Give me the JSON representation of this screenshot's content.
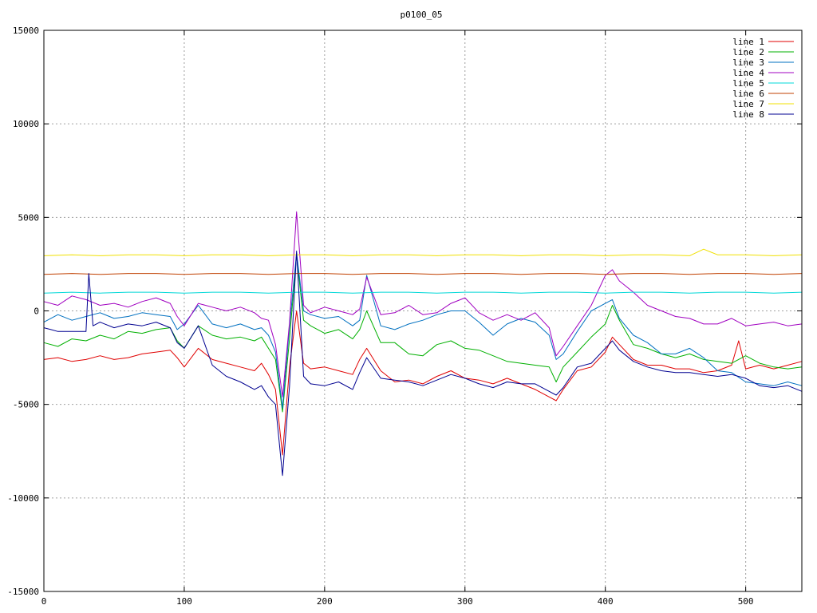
{
  "chart_data": {
    "type": "line",
    "title": "p0100_05",
    "xlabel": "",
    "ylabel": "",
    "xlim": [
      0,
      540
    ],
    "ylim": [
      -15000,
      15000
    ],
    "xticks": [
      0,
      100,
      200,
      300,
      400,
      500
    ],
    "yticks": [
      -15000,
      -10000,
      -5000,
      0,
      5000,
      10000,
      15000
    ],
    "grid": true,
    "legend_position": "top-right",
    "series": [
      {
        "name": "line 1",
        "color": "#e00000",
        "x": [
          0,
          10,
          20,
          30,
          40,
          50,
          60,
          70,
          80,
          90,
          95,
          100,
          110,
          120,
          130,
          140,
          150,
          155,
          160,
          165,
          170,
          175,
          180,
          185,
          190,
          200,
          210,
          220,
          225,
          230,
          240,
          250,
          260,
          270,
          280,
          290,
          300,
          310,
          320,
          330,
          340,
          350,
          360,
          365,
          370,
          380,
          390,
          400,
          405,
          410,
          420,
          430,
          440,
          450,
          460,
          470,
          480,
          490,
          495,
          500,
          510,
          520,
          530,
          540
        ],
        "values": [
          -2600,
          -2500,
          -2700,
          -2600,
          -2400,
          -2600,
          -2500,
          -2300,
          -2200,
          -2100,
          -2500,
          -3000,
          -2000,
          -2600,
          -2800,
          -3000,
          -3200,
          -2800,
          -3400,
          -4200,
          -7700,
          -3000,
          0,
          -2800,
          -3100,
          -3000,
          -3200,
          -3400,
          -2600,
          -2000,
          -3200,
          -3800,
          -3700,
          -3900,
          -3500,
          -3200,
          -3600,
          -3700,
          -3900,
          -3600,
          -3900,
          -4200,
          -4600,
          -4800,
          -4200,
          -3200,
          -3000,
          -2200,
          -1400,
          -1800,
          -2600,
          -2900,
          -2900,
          -3100,
          -3100,
          -3300,
          -3200,
          -2900,
          -1600,
          -3100,
          -2900,
          -3100,
          -2900,
          -2700
        ]
      },
      {
        "name": "line 2",
        "color": "#00b000",
        "x": [
          0,
          10,
          20,
          30,
          40,
          50,
          60,
          70,
          80,
          90,
          95,
          100,
          110,
          120,
          130,
          140,
          150,
          155,
          160,
          165,
          170,
          175,
          180,
          185,
          190,
          200,
          210,
          220,
          225,
          230,
          240,
          250,
          260,
          270,
          280,
          290,
          300,
          310,
          320,
          330,
          340,
          350,
          360,
          365,
          370,
          380,
          390,
          400,
          405,
          410,
          420,
          430,
          440,
          450,
          460,
          470,
          480,
          490,
          500,
          510,
          520,
          530,
          540
        ],
        "values": [
          -1700,
          -1900,
          -1500,
          -1600,
          -1300,
          -1500,
          -1100,
          -1200,
          -1000,
          -900,
          -1600,
          -2000,
          -800,
          -1300,
          -1500,
          -1400,
          -1600,
          -1400,
          -2000,
          -2600,
          -5400,
          -1500,
          3000,
          -500,
          -800,
          -1200,
          -1000,
          -1500,
          -1000,
          0,
          -1700,
          -1700,
          -2300,
          -2400,
          -1800,
          -1600,
          -2000,
          -2100,
          -2400,
          -2700,
          -2800,
          -2900,
          -3000,
          -3800,
          -3000,
          -2200,
          -1400,
          -700,
          300,
          -500,
          -1800,
          -2000,
          -2300,
          -2500,
          -2300,
          -2600,
          -2700,
          -2800,
          -2400,
          -2800,
          -3000,
          -3100,
          -3000
        ]
      },
      {
        "name": "line 3",
        "color": "#0070c0",
        "x": [
          0,
          10,
          20,
          30,
          40,
          50,
          60,
          70,
          80,
          90,
          95,
          100,
          110,
          120,
          130,
          140,
          150,
          155,
          160,
          165,
          170,
          175,
          180,
          185,
          190,
          200,
          210,
          220,
          225,
          230,
          240,
          250,
          260,
          270,
          280,
          290,
          300,
          310,
          320,
          330,
          340,
          350,
          360,
          365,
          370,
          380,
          390,
          400,
          405,
          410,
          420,
          430,
          440,
          450,
          460,
          470,
          480,
          490,
          500,
          510,
          520,
          530,
          540
        ],
        "values": [
          -600,
          -200,
          -500,
          -300,
          -100,
          -400,
          -300,
          -100,
          -200,
          -300,
          -1000,
          -700,
          300,
          -700,
          -900,
          -700,
          -1000,
          -900,
          -1300,
          -2200,
          -5200,
          -800,
          3100,
          0,
          -200,
          -400,
          -300,
          -800,
          -500,
          1900,
          -800,
          -1000,
          -700,
          -500,
          -200,
          0,
          0,
          -600,
          -1300,
          -700,
          -400,
          -600,
          -1300,
          -2600,
          -2300,
          -1100,
          0,
          400,
          600,
          -400,
          -1300,
          -1700,
          -2300,
          -2300,
          -2000,
          -2500,
          -3200,
          -3300,
          -3800,
          -3900,
          -4000,
          -3800,
          -4000
        ]
      },
      {
        "name": "line 4",
        "color": "#a000c0",
        "x": [
          0,
          10,
          20,
          30,
          40,
          50,
          60,
          70,
          80,
          90,
          95,
          100,
          110,
          120,
          130,
          140,
          150,
          155,
          160,
          165,
          170,
          175,
          180,
          185,
          190,
          200,
          210,
          220,
          225,
          230,
          240,
          250,
          260,
          270,
          280,
          290,
          300,
          310,
          320,
          330,
          340,
          350,
          360,
          365,
          370,
          380,
          390,
          400,
          405,
          410,
          420,
          430,
          440,
          450,
          460,
          470,
          480,
          490,
          500,
          510,
          520,
          530,
          540
        ],
        "values": [
          500,
          300,
          800,
          600,
          300,
          400,
          200,
          500,
          700,
          400,
          -300,
          -800,
          400,
          200,
          0,
          200,
          -100,
          -400,
          -500,
          -1800,
          -4600,
          -600,
          5300,
          300,
          -100,
          200,
          0,
          -200,
          100,
          1800,
          -200,
          -100,
          300,
          -200,
          -100,
          400,
          700,
          -100,
          -500,
          -200,
          -500,
          -100,
          -900,
          -2400,
          -1900,
          -800,
          300,
          1900,
          2200,
          1600,
          1000,
          300,
          0,
          -300,
          -400,
          -700,
          -700,
          -400,
          -800,
          -700,
          -600,
          -800,
          -700
        ]
      },
      {
        "name": "line 5",
        "color": "#00d8d8",
        "x": [
          0,
          20,
          40,
          60,
          80,
          100,
          120,
          140,
          160,
          180,
          200,
          220,
          240,
          260,
          280,
          300,
          320,
          340,
          360,
          380,
          400,
          420,
          440,
          460,
          480,
          500,
          520,
          540
        ],
        "values": [
          950,
          1000,
          950,
          1000,
          1000,
          950,
          1000,
          1000,
          950,
          1000,
          1000,
          950,
          1000,
          1000,
          950,
          1000,
          1000,
          950,
          1000,
          1000,
          950,
          1000,
          1000,
          950,
          1000,
          1000,
          950,
          1000
        ]
      },
      {
        "name": "line 6",
        "color": "#c04000",
        "x": [
          0,
          20,
          40,
          60,
          80,
          100,
          120,
          140,
          160,
          180,
          200,
          220,
          240,
          260,
          280,
          300,
          320,
          340,
          360,
          380,
          400,
          420,
          440,
          460,
          480,
          500,
          520,
          540
        ],
        "values": [
          1950,
          2000,
          1950,
          2000,
          2000,
          1950,
          2000,
          2000,
          1950,
          2000,
          2000,
          1950,
          2000,
          2000,
          1950,
          2000,
          2000,
          1950,
          2000,
          2000,
          1950,
          2000,
          2000,
          1950,
          2000,
          2000,
          1950,
          2000
        ]
      },
      {
        "name": "line 7",
        "color": "#f0e000",
        "x": [
          0,
          20,
          40,
          60,
          80,
          100,
          120,
          140,
          160,
          180,
          200,
          220,
          240,
          260,
          280,
          300,
          320,
          340,
          360,
          380,
          400,
          420,
          440,
          460,
          470,
          480,
          500,
          520,
          540
        ],
        "values": [
          2950,
          3000,
          2950,
          3000,
          3000,
          2950,
          3000,
          3000,
          2950,
          3000,
          3000,
          2950,
          3000,
          3000,
          2950,
          3000,
          3000,
          2950,
          3000,
          3000,
          2950,
          3000,
          3000,
          2950,
          3300,
          3000,
          3000,
          2950,
          3000
        ]
      },
      {
        "name": "line 8",
        "color": "#000090",
        "x": [
          0,
          5,
          10,
          15,
          20,
          25,
          30,
          32,
          35,
          40,
          50,
          60,
          70,
          80,
          90,
          95,
          100,
          110,
          120,
          130,
          140,
          150,
          155,
          160,
          165,
          170,
          175,
          180,
          185,
          190,
          200,
          210,
          220,
          225,
          230,
          240,
          250,
          260,
          270,
          280,
          290,
          300,
          310,
          320,
          330,
          340,
          350,
          360,
          365,
          370,
          380,
          390,
          400,
          405,
          410,
          420,
          430,
          440,
          450,
          460,
          470,
          480,
          490,
          500,
          510,
          520,
          530,
          540
        ],
        "values": [
          -900,
          -1000,
          -1100,
          -1100,
          -1100,
          -1100,
          -1100,
          2000,
          -800,
          -600,
          -900,
          -700,
          -800,
          -600,
          -900,
          -1700,
          -2000,
          -800,
          -2900,
          -3500,
          -3800,
          -4200,
          -4000,
          -4600,
          -5000,
          -8800,
          -4000,
          3200,
          -3500,
          -3900,
          -4000,
          -3800,
          -4200,
          -3300,
          -2500,
          -3600,
          -3700,
          -3800,
          -4000,
          -3700,
          -3400,
          -3600,
          -3900,
          -4100,
          -3800,
          -3900,
          -3900,
          -4300,
          -4500,
          -4100,
          -3000,
          -2800,
          -2000,
          -1600,
          -2100,
          -2700,
          -3000,
          -3200,
          -3300,
          -3300,
          -3400,
          -3500,
          -3400,
          -3600,
          -4000,
          -4100,
          -4000,
          -4300
        ]
      }
    ]
  }
}
